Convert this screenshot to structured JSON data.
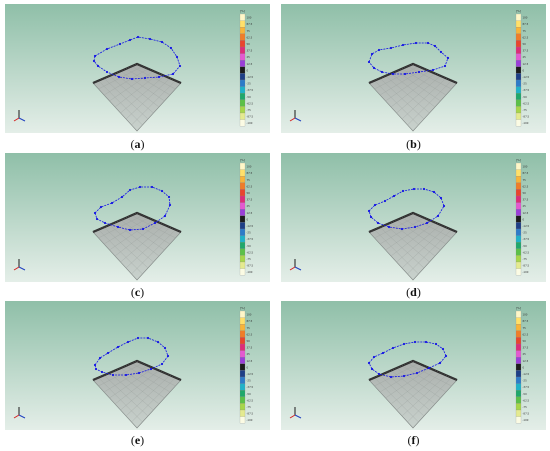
{
  "colorbar": {
    "unit": "[%]",
    "ticks": [
      "100",
      "87.5",
      "75",
      "62.5",
      "50",
      "37.5",
      "25",
      "12.5",
      "0",
      "-12.5",
      "-25",
      "-37.5",
      "-50",
      "-62.5",
      "-75",
      "-87.5",
      "-100"
    ],
    "colors": [
      "#fff7c8",
      "#ffe06a",
      "#f8b43a",
      "#ef7d2a",
      "#e8452e",
      "#dc2d78",
      "#e35ad0",
      "#9a3fd8",
      "#1c1c1c",
      "#1d3f86",
      "#2d7bc8",
      "#20b2c8",
      "#1fa86b",
      "#5cc048",
      "#a7d64a",
      "#e4ea90",
      "#fbfbe4"
    ]
  },
  "axis_triad": {
    "x_color": "#d42020",
    "y_color": "#2040c0",
    "z_color": "#1a1a1a"
  },
  "colors": {
    "background_top": "#8fbfa8",
    "background_bottom": "#e4eee8",
    "mode_shape": "#1414e6",
    "plate": "#8c8c8c"
  },
  "panels": [
    {
      "id": "a",
      "caption": "a"
    },
    {
      "id": "b",
      "caption": "b"
    },
    {
      "id": "c",
      "caption": "c"
    },
    {
      "id": "d",
      "caption": "d"
    },
    {
      "id": "e",
      "caption": "e"
    },
    {
      "id": "f",
      "caption": "f"
    }
  ]
}
